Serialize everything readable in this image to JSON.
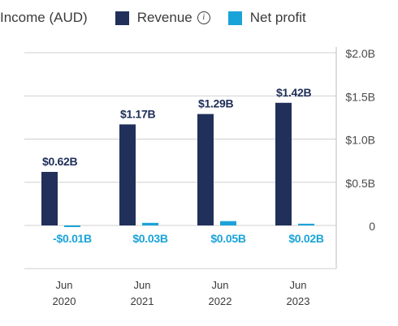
{
  "chart_data": {
    "type": "bar",
    "title": "Income (AUD)",
    "categories": [
      "Jun 2020",
      "Jun 2021",
      "Jun 2022",
      "Jun 2023"
    ],
    "category_lines": [
      [
        "Jun",
        "2020"
      ],
      [
        "Jun",
        "2021"
      ],
      [
        "Jun",
        "2022"
      ],
      [
        "Jun",
        "2023"
      ]
    ],
    "series": [
      {
        "name": "Revenue",
        "color": "#20305a",
        "values": [
          0.62,
          1.17,
          1.29,
          1.42
        ],
        "labels": [
          "$0.62B",
          "$1.17B",
          "$1.29B",
          "$1.42B"
        ],
        "label_color": "#20305a",
        "label_position": "above"
      },
      {
        "name": "Net profit",
        "color": "#1aa3d9",
        "values": [
          -0.01,
          0.03,
          0.05,
          0.02
        ],
        "labels": [
          "-$0.01B",
          "$0.03B",
          "$0.05B",
          "$0.02B"
        ],
        "label_color": "#1aa3d9",
        "label_position": "below-zero"
      }
    ],
    "ylim": [
      -0.5,
      2.0
    ],
    "yticks": [
      0,
      0.5,
      1.0,
      1.5,
      2.0
    ],
    "ytick_labels": [
      "0",
      "$0.5B",
      "$1.0B",
      "$1.5B",
      "$2.0B"
    ],
    "y_axis_position": "right",
    "grid": true,
    "legend_position": "top",
    "revenue_info_icon": "info-icon"
  }
}
